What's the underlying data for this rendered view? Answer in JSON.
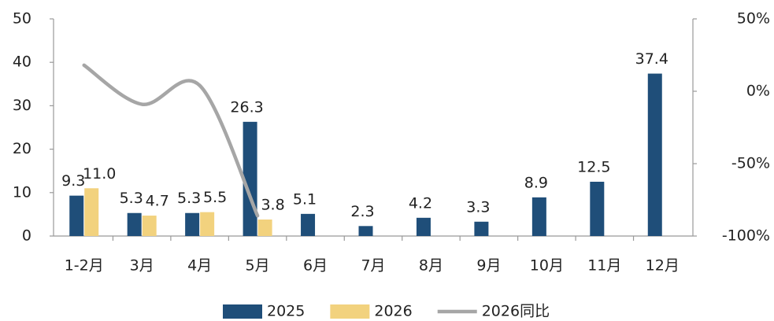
{
  "chart_data": {
    "type": "bar",
    "categories": [
      "1-2月",
      "3月",
      "4月",
      "5月",
      "6月",
      "7月",
      "8月",
      "9月",
      "10月",
      "11月",
      "12月"
    ],
    "series": [
      {
        "name": "2025",
        "color": "#1f4e79",
        "values": [
          9.3,
          5.3,
          5.3,
          26.3,
          5.1,
          2.3,
          4.2,
          3.3,
          8.9,
          12.5,
          37.4
        ]
      },
      {
        "name": "2026",
        "color": "#f2d27e",
        "values": [
          11.0,
          4.7,
          5.5,
          3.8,
          null,
          null,
          null,
          null,
          null,
          null,
          null
        ],
        "value_labels": [
          "11.0",
          "4.7",
          "5.5",
          "3.8",
          null,
          null,
          null,
          null,
          null,
          null,
          null
        ]
      },
      {
        "name": "2026同比",
        "type": "line",
        "axis": "y2",
        "color": "#a6a6a6",
        "smooth": true,
        "values": [
          18,
          -9,
          4,
          -86,
          null,
          null,
          null,
          null,
          null,
          null,
          null
        ]
      }
    ],
    "ylim": [
      0,
      50
    ],
    "yticks": [
      0,
      10,
      20,
      30,
      40,
      50
    ],
    "y2lim": [
      -100,
      50
    ],
    "y2ticks": [
      {
        "value": -100,
        "label": "-100%"
      },
      {
        "value": -50,
        "label": "-50%"
      },
      {
        "value": 0,
        "label": "0%"
      },
      {
        "value": 50,
        "label": "50%"
      }
    ],
    "grid": false,
    "legend": "bottom"
  }
}
